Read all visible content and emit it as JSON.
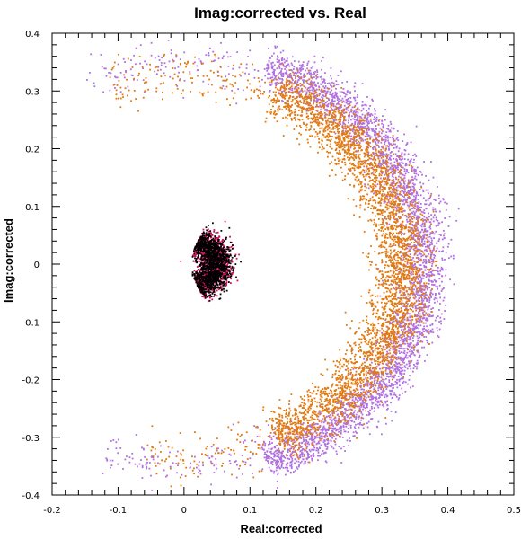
{
  "chart_data": {
    "type": "scatter",
    "title": "Imag:corrected vs. Real",
    "xlabel": "Real:corrected",
    "ylabel": "Imag:corrected",
    "xlim": [
      -0.2,
      0.5
    ],
    "ylim": [
      -0.4,
      0.4
    ],
    "x_ticks": [
      "-0.2",
      "-0.1",
      "0",
      "0.1",
      "0.2",
      "0.3",
      "0.4",
      "0.5"
    ],
    "y_ticks": [
      "-0.4",
      "-0.3",
      "-0.2",
      "-0.1",
      "0",
      "0.1",
      "0.2",
      "0.3",
      "0.4"
    ],
    "grid": false,
    "legend": "none",
    "series": [
      {
        "color": "#b070e0",
        "description": "outer crescent arc",
        "center": [
          0.0,
          0.0
        ],
        "radius_range": [
          0.34,
          0.39
        ],
        "angle_range_deg": [
          -70,
          70
        ],
        "sparse_extension": {
          "radius": 0.35,
          "angle_range_deg": [
            -110,
            115
          ]
        }
      },
      {
        "color": "#e07a10",
        "description": "middle crescent arc",
        "center": [
          0.0,
          0.0
        ],
        "radius_range": [
          0.3,
          0.36
        ],
        "angle_range_deg": [
          -65,
          65
        ],
        "sparse_extension": {
          "radius": 0.33,
          "angle_range_deg": [
            -100,
            110
          ]
        }
      },
      {
        "color": "#d0105a",
        "description": "inner crescent cluster",
        "center": [
          0.0,
          0.0
        ],
        "radius_range": [
          0.03,
          0.065
        ],
        "angle_range_deg": [
          -70,
          70
        ]
      },
      {
        "color": "#000000",
        "description": "inner crescent cluster (black points)",
        "center": [
          0.0,
          0.0
        ],
        "radius_range": [
          0.03,
          0.065
        ],
        "angle_range_deg": [
          -70,
          70
        ]
      }
    ]
  }
}
